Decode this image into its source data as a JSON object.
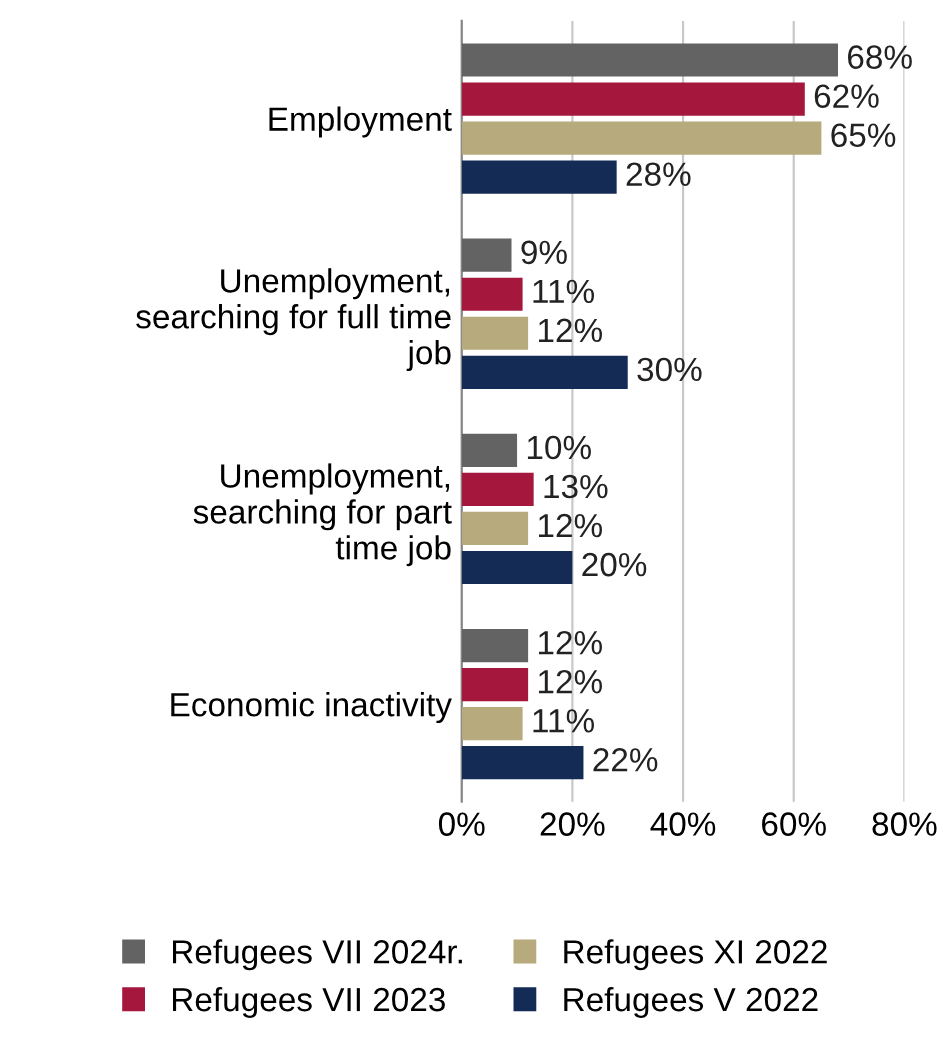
{
  "chart_data": {
    "type": "bar",
    "orientation": "horizontal",
    "categories": [
      "Employment",
      "Unemployment,\nsearching for full time\njob",
      "Unemployment,\nsearching for part\ntime job",
      "Economic inactivity"
    ],
    "series": [
      {
        "name": "Refugees VII 2024r.",
        "color": "#636363",
        "values": [
          68,
          9,
          10,
          12
        ],
        "value_labels": [
          "68%",
          "9%",
          "10%",
          "12%"
        ]
      },
      {
        "name": "Refugees VII 2023",
        "color": "#a5173c",
        "values": [
          62,
          11,
          13,
          12
        ],
        "value_labels": [
          "62%",
          "11%",
          "13%",
          "12%"
        ]
      },
      {
        "name": "Refugees XI 2022",
        "color": "#b7aa7d",
        "values": [
          65,
          12,
          12,
          11
        ],
        "value_labels": [
          "65%",
          "12%",
          "12%",
          "11%"
        ]
      },
      {
        "name": "Refugees V 2022",
        "color": "#132b55",
        "values": [
          28,
          30,
          20,
          22
        ],
        "value_labels": [
          "28%",
          "30%",
          "20%",
          "22%"
        ]
      }
    ],
    "xlim": [
      0,
      80
    ],
    "xticks": [
      {
        "value": 0,
        "label": "0%"
      },
      {
        "value": 20,
        "label": "20%"
      },
      {
        "value": 40,
        "label": "40%"
      },
      {
        "value": 60,
        "label": "60%"
      },
      {
        "value": 80,
        "label": "80%"
      }
    ],
    "grid": "x",
    "legend": "bottom"
  }
}
